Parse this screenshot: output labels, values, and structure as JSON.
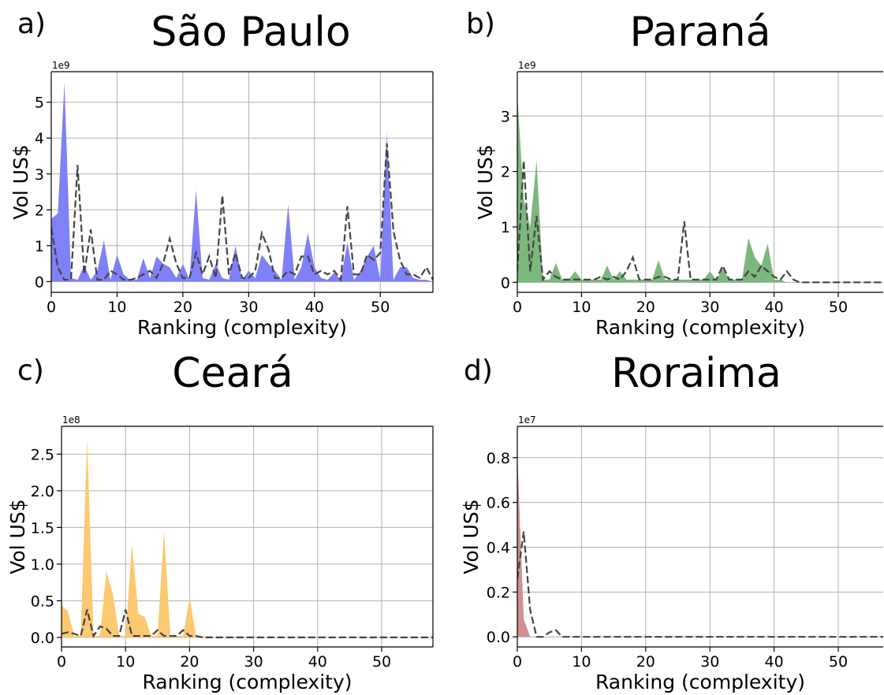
{
  "chart_data": [
    {
      "type": "area",
      "panel_label": "a)",
      "title": "São Paulo",
      "xlabel": "Ranking (complexity)",
      "ylabel": "Vol US$",
      "scale_label": "1e9",
      "xlim": [
        0,
        58
      ],
      "ylim": [
        -0.3,
        5.85
      ],
      "xticks": [
        0,
        10,
        20,
        30,
        40,
        50
      ],
      "yticks": [
        0,
        1,
        2,
        3,
        4,
        5
      ],
      "grid": true,
      "fill_color": "#8080f8",
      "x": [
        0,
        1,
        2,
        3,
        4,
        5,
        6,
        7,
        8,
        9,
        10,
        11,
        12,
        13,
        14,
        15,
        16,
        17,
        18,
        19,
        20,
        21,
        22,
        23,
        24,
        25,
        26,
        27,
        28,
        29,
        30,
        31,
        32,
        33,
        34,
        35,
        36,
        37,
        38,
        39,
        40,
        41,
        42,
        43,
        44,
        45,
        46,
        47,
        48,
        49,
        50,
        51,
        52,
        53,
        54,
        55,
        56,
        57,
        58
      ],
      "series": [
        {
          "values": [
            1.75,
            1.9,
            5.55,
            0.1,
            0.05,
            0.45,
            0.05,
            0.3,
            1.15,
            0.05,
            0.75,
            0.2,
            0.05,
            0.05,
            0.65,
            0.1,
            0.7,
            0.5,
            0.4,
            0.1,
            0.5,
            0.05,
            2.55,
            0.1,
            0.05,
            0.5,
            0.1,
            0.05,
            1.0,
            0.05,
            0.3,
            0.1,
            0.75,
            0.5,
            0.3,
            0.05,
            2.15,
            0.05,
            0.4,
            1.35,
            0.4,
            0.1,
            0.05,
            0.25,
            0.05,
            1.1,
            0.05,
            0.3,
            0.7,
            1.0,
            0.05,
            4.15,
            0.05,
            0.4,
            0.4,
            0.1,
            0.05,
            0.05,
            0.0
          ]
        },
        {
          "style": "dashed",
          "values": [
            1.5,
            0.4,
            0.05,
            0.05,
            3.25,
            0.2,
            1.45,
            0.05,
            0.05,
            0.3,
            0.2,
            0.05,
            0.05,
            0.1,
            0.2,
            0.3,
            0.1,
            0.5,
            1.2,
            0.5,
            0.1,
            0.1,
            0.8,
            0.2,
            0.7,
            0.1,
            2.4,
            0.2,
            0.8,
            0.1,
            0.1,
            0.3,
            1.35,
            0.9,
            0.1,
            0.1,
            0.3,
            0.2,
            0.7,
            0.7,
            0.2,
            0.3,
            0.2,
            0.3,
            0.05,
            2.1,
            0.2,
            0.2,
            0.75,
            0.6,
            0.8,
            3.85,
            1.4,
            0.6,
            0.2,
            0.2,
            0.1,
            0.4,
            0.05
          ]
        }
      ]
    },
    {
      "type": "area",
      "panel_label": "b)",
      "title": "Paraná",
      "xlabel": "Ranking (complexity)",
      "ylabel": "Vol US$",
      "scale_label": "1e9",
      "xlim": [
        0,
        57
      ],
      "ylim": [
        -0.18,
        3.8
      ],
      "xticks": [
        0,
        10,
        20,
        30,
        40,
        50
      ],
      "yticks": [
        0,
        1,
        2,
        3
      ],
      "grid": true,
      "fill_color": "#7cb87c",
      "x": [
        0,
        1,
        2,
        3,
        4,
        5,
        6,
        7,
        8,
        9,
        10,
        11,
        12,
        13,
        14,
        15,
        16,
        17,
        18,
        19,
        20,
        21,
        22,
        23,
        24,
        25,
        26,
        27,
        28,
        29,
        30,
        31,
        32,
        33,
        34,
        35,
        36,
        37,
        38,
        39,
        40,
        41,
        42,
        43,
        44,
        45,
        46,
        47,
        48,
        49,
        50,
        51,
        52,
        53,
        54,
        55,
        56,
        57
      ],
      "series": [
        {
          "values": [
            3.4,
            1.5,
            1.0,
            2.2,
            0.05,
            0.05,
            0.35,
            0.05,
            0.05,
            0.2,
            0.05,
            0.05,
            0.05,
            0.05,
            0.3,
            0.05,
            0.2,
            0.05,
            0.05,
            0.05,
            0.05,
            0.05,
            0.4,
            0.05,
            0.05,
            0.05,
            0.05,
            0.05,
            0.05,
            0.05,
            0.2,
            0.05,
            0.25,
            0.05,
            0.05,
            0.05,
            0.8,
            0.45,
            0.3,
            0.7,
            0.05,
            0.05,
            0.0,
            0.0,
            0.0,
            0.0,
            0.0,
            0.0,
            0.0,
            0.0,
            0.0,
            0.0,
            0.0,
            0.0,
            0.0,
            0.0,
            0.0,
            0.0
          ]
        },
        {
          "style": "dashed",
          "values": [
            0.2,
            2.2,
            0.2,
            1.2,
            0.05,
            0.2,
            0.1,
            0.05,
            0.05,
            0.05,
            0.05,
            0.05,
            0.05,
            0.1,
            0.05,
            0.1,
            0.05,
            0.2,
            0.45,
            0.05,
            0.05,
            0.05,
            0.1,
            0.1,
            0.05,
            0.05,
            1.1,
            0.05,
            0.05,
            0.05,
            0.05,
            0.05,
            0.3,
            0.05,
            0.05,
            0.05,
            0.2,
            0.1,
            0.3,
            0.2,
            0.1,
            0.05,
            0.2,
            0.05,
            0.0,
            0.0,
            0.0,
            0.0,
            0.0,
            0.0,
            0.0,
            0.0,
            0.0,
            0.0,
            0.0,
            0.0,
            0.0,
            0.0
          ]
        }
      ]
    },
    {
      "type": "area",
      "panel_label": "c)",
      "title": "Ceará",
      "xlabel": "Ranking (complexity)",
      "ylabel": "Vol US$",
      "scale_label": "1e8",
      "xlim": [
        0,
        58
      ],
      "ylim": [
        -0.13,
        2.88
      ],
      "xticks": [
        0,
        10,
        20,
        30,
        40,
        50
      ],
      "yticks": [
        "0.0",
        "0.5",
        "1.0",
        "1.5",
        "2.0",
        "2.5"
      ],
      "grid": true,
      "fill_color": "#fcc870",
      "x": [
        0,
        1,
        2,
        3,
        4,
        5,
        6,
        7,
        8,
        9,
        10,
        11,
        12,
        13,
        14,
        15,
        16,
        17,
        18,
        19,
        20,
        21,
        22,
        23,
        24,
        25,
        26,
        27,
        28,
        29,
        30,
        31,
        32,
        33,
        34,
        35,
        36,
        37,
        38,
        39,
        40,
        41,
        42,
        43,
        44,
        45,
        46,
        47,
        48,
        49,
        50,
        51,
        52,
        53,
        54,
        55,
        56,
        57,
        58
      ],
      "series": [
        {
          "values": [
            0.45,
            0.35,
            0.02,
            0.02,
            2.72,
            0.02,
            0.02,
            0.9,
            0.6,
            0.02,
            0.02,
            1.28,
            0.32,
            0.28,
            0.02,
            0.02,
            1.45,
            0.02,
            0.02,
            0.02,
            0.55,
            0.02,
            0.02,
            0.0,
            0.0,
            0.0,
            0.0,
            0.0,
            0.0,
            0.0,
            0.0,
            0.0,
            0.0,
            0.0,
            0.0,
            0.0,
            0.0,
            0.0,
            0.0,
            0.0,
            0.0,
            0.0,
            0.0,
            0.0,
            0.0,
            0.0,
            0.0,
            0.0,
            0.0,
            0.0,
            0.0,
            0.0,
            0.0,
            0.0,
            0.0,
            0.0,
            0.0,
            0.0,
            0.0
          ]
        },
        {
          "style": "dashed",
          "values": [
            0.05,
            0.07,
            0.05,
            0.02,
            0.38,
            0.02,
            0.15,
            0.12,
            0.02,
            0.02,
            0.38,
            0.02,
            0.02,
            0.02,
            0.02,
            0.1,
            0.02,
            0.02,
            0.02,
            0.1,
            0.02,
            0.02,
            0.0,
            0.0,
            0.0,
            0.0,
            0.0,
            0.0,
            0.0,
            0.0,
            0.0,
            0.0,
            0.0,
            0.0,
            0.0,
            0.0,
            0.0,
            0.0,
            0.0,
            0.0,
            0.0,
            0.0,
            0.0,
            0.0,
            0.0,
            0.0,
            0.0,
            0.0,
            0.0,
            0.0,
            0.0,
            0.0,
            0.0,
            0.0,
            0.0,
            0.0,
            0.0,
            0.0,
            0.0
          ]
        }
      ]
    },
    {
      "type": "area",
      "panel_label": "d)",
      "title": "Roraima",
      "xlabel": "Ranking (complexity)",
      "ylabel": "Vol US$",
      "scale_label": "1e7",
      "xlim": [
        0,
        57
      ],
      "ylim": [
        -0.045,
        0.94
      ],
      "xticks": [
        0,
        10,
        20,
        30,
        40,
        50
      ],
      "yticks": [
        "0.0",
        "0.2",
        "0.4",
        "0.6",
        "0.8"
      ],
      "grid": true,
      "fill_color": "#d09090",
      "x": [
        0,
        1,
        2,
        3,
        4,
        5,
        6,
        7,
        8,
        9,
        10,
        11,
        12,
        13,
        14,
        15,
        16,
        17,
        18,
        19,
        20,
        21,
        22,
        23,
        24,
        25,
        26,
        27,
        28,
        29,
        30,
        31,
        32,
        33,
        34,
        35,
        36,
        37,
        38,
        39,
        40,
        41,
        42,
        43,
        44,
        45,
        46,
        47,
        48,
        49,
        50,
        51,
        52,
        53,
        54,
        55,
        56,
        57
      ],
      "series": [
        {
          "values": [
            0.82,
            0.08,
            0.0,
            0.0,
            0.0,
            0.0,
            0.0,
            0.0,
            0.0,
            0.0,
            0.0,
            0.0,
            0.0,
            0.0,
            0.0,
            0.0,
            0.0,
            0.0,
            0.0,
            0.0,
            0.0,
            0.0,
            0.0,
            0.0,
            0.0,
            0.0,
            0.0,
            0.0,
            0.0,
            0.0,
            0.0,
            0.0,
            0.0,
            0.0,
            0.0,
            0.0,
            0.0,
            0.0,
            0.0,
            0.0,
            0.0,
            0.0,
            0.0,
            0.0,
            0.0,
            0.0,
            0.0,
            0.0,
            0.0,
            0.0,
            0.0,
            0.0,
            0.0,
            0.0,
            0.0,
            0.0,
            0.0,
            0.0
          ]
        },
        {
          "style": "dashed",
          "values": [
            0.26,
            0.47,
            0.12,
            0.0,
            0.0,
            0.02,
            0.03,
            0.0,
            0.0,
            0.0,
            0.0,
            0.0,
            0.0,
            0.0,
            0.0,
            0.0,
            0.0,
            0.0,
            0.0,
            0.0,
            0.0,
            0.0,
            0.0,
            0.0,
            0.0,
            0.0,
            0.0,
            0.0,
            0.0,
            0.0,
            0.0,
            0.0,
            0.0,
            0.0,
            0.0,
            0.0,
            0.0,
            0.0,
            0.0,
            0.0,
            0.0,
            0.0,
            0.0,
            0.0,
            0.0,
            0.0,
            0.0,
            0.0,
            0.0,
            0.0,
            0.0,
            0.0,
            0.0,
            0.0,
            0.0,
            0.0,
            0.0,
            0.0
          ]
        }
      ]
    }
  ]
}
